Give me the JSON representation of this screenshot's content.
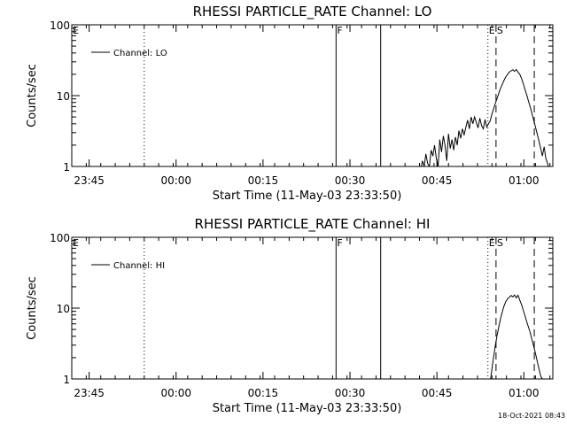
{
  "footer": {
    "timestamp": "18-Oct-2021 08:43"
  },
  "chart_data": [
    {
      "type": "line",
      "title": "RHESSI PARTICLE_RATE Channel: LO",
      "xlabel": "Start Time (11-May-03 23:33:50)",
      "ylabel": "Counts/sec",
      "yscale": "log",
      "ylim": [
        1,
        100
      ],
      "xlim_minutes": [
        -15.0,
        68.0
      ],
      "xticks": {
        "values": [
          -12,
          3,
          18,
          33,
          48,
          63
        ],
        "labels": [
          "23:45",
          "00:00",
          "00:15",
          "00:30",
          "00:45",
          "01:00"
        ]
      },
      "yticks": {
        "values": [
          1,
          10,
          100
        ],
        "labels": [
          "1",
          "10",
          "100"
        ]
      },
      "legend": {
        "entry": "Channel: LO",
        "placement": "top-left"
      },
      "markers": [
        {
          "label": "E",
          "x": -15.0,
          "style": "dotted"
        },
        {
          "label": "",
          "x": -2.5,
          "style": "dotted"
        },
        {
          "label": "F",
          "x": 30.6,
          "style": "solid"
        },
        {
          "label": "",
          "x": 38.3,
          "style": "solid"
        },
        {
          "label": "E",
          "x": 56.8,
          "style": "dotted"
        },
        {
          "label": "S",
          "x": 58.2,
          "style": "dashed"
        },
        {
          "label": "",
          "x": 64.8,
          "style": "dashed"
        },
        {
          "label": "",
          "x": 71.8,
          "style": "dotted"
        }
      ],
      "series": [
        {
          "x": [
            45.2,
            45.5,
            45.8,
            46.1,
            46.4,
            46.7,
            47.0,
            47.3,
            47.6,
            47.9,
            48.2,
            48.5,
            48.8,
            49.1,
            49.4,
            49.7,
            50.0,
            50.3,
            50.6,
            50.9,
            51.2,
            51.5,
            51.8,
            52.1,
            52.4,
            52.7,
            53.0,
            53.3,
            53.6,
            53.9,
            54.2,
            54.5,
            54.8,
            55.1,
            55.4,
            55.7,
            56.0,
            56.3,
            56.6,
            56.9,
            57.2,
            57.5,
            57.8,
            58.1,
            58.4,
            58.7,
            59.0,
            59.3,
            59.6,
            59.9,
            60.2,
            60.5,
            60.8,
            61.1,
            61.4,
            61.7,
            62.0,
            62.3,
            62.6,
            62.9,
            63.2,
            63.5,
            63.8,
            64.1,
            64.4,
            64.7,
            65.0,
            65.3,
            65.6,
            65.9,
            66.2,
            66.5,
            66.8,
            67.1,
            67.4
          ],
          "y": [
            0.9,
            1.2,
            1.0,
            1.5,
            1.1,
            1.0,
            1.7,
            1.4,
            2.0,
            1.3,
            1.0,
            2.4,
            1.6,
            2.7,
            2.0,
            1.2,
            2.9,
            1.8,
            2.4,
            1.7,
            2.6,
            2.0,
            3.2,
            2.5,
            3.4,
            2.8,
            3.6,
            4.5,
            3.4,
            5.0,
            4.0,
            5.0,
            4.2,
            3.5,
            4.8,
            3.8,
            3.4,
            4.6,
            3.6,
            4.0,
            4.4,
            5.5,
            6.6,
            7.8,
            9.2,
            11.0,
            12.8,
            14.6,
            16.5,
            18.5,
            20.0,
            21.5,
            22.4,
            23.2,
            22.0,
            23.4,
            21.5,
            20.0,
            17.5,
            14.8,
            12.2,
            10.2,
            8.4,
            6.9,
            5.6,
            4.5,
            3.6,
            2.9,
            2.3,
            1.8,
            1.4,
            1.9,
            1.3,
            1.1,
            0.9
          ]
        }
      ]
    },
    {
      "type": "line",
      "title": "RHESSI PARTICLE_RATE Channel: HI",
      "xlabel": "Start Time (11-May-03 23:33:50)",
      "ylabel": "Counts/sec",
      "yscale": "log",
      "ylim": [
        1,
        100
      ],
      "xlim_minutes": [
        -15.0,
        68.0
      ],
      "xticks": {
        "values": [
          -12,
          3,
          18,
          33,
          48,
          63
        ],
        "labels": [
          "23:45",
          "00:00",
          "00:15",
          "00:30",
          "00:45",
          "01:00"
        ]
      },
      "yticks": {
        "values": [
          1,
          10,
          100
        ],
        "labels": [
          "1",
          "10",
          "100"
        ]
      },
      "legend": {
        "entry": "Channel: HI",
        "placement": "top-left"
      },
      "markers": [
        {
          "label": "E",
          "x": -15.0,
          "style": "dotted"
        },
        {
          "label": "",
          "x": -2.5,
          "style": "dotted"
        },
        {
          "label": "F",
          "x": 30.6,
          "style": "solid"
        },
        {
          "label": "",
          "x": 38.3,
          "style": "solid"
        },
        {
          "label": "E",
          "x": 56.8,
          "style": "dotted"
        },
        {
          "label": "S",
          "x": 58.2,
          "style": "dashed"
        },
        {
          "label": "",
          "x": 64.8,
          "style": "dashed"
        },
        {
          "label": "",
          "x": 71.8,
          "style": "dotted"
        }
      ],
      "series": [
        {
          "x": [
            57.2,
            57.5,
            57.8,
            58.1,
            58.4,
            58.7,
            59.0,
            59.3,
            59.6,
            59.9,
            60.2,
            60.5,
            60.8,
            61.1,
            61.4,
            61.7,
            62.0,
            62.3,
            62.6,
            62.9,
            63.2,
            63.5,
            63.8,
            64.1,
            64.4,
            64.7,
            65.0,
            65.3,
            65.6,
            65.9,
            66.2,
            66.5
          ],
          "y": [
            0.9,
            1.4,
            2.1,
            3.0,
            4.2,
            5.6,
            7.2,
            9.0,
            10.8,
            12.4,
            13.6,
            14.2,
            15.1,
            14.4,
            15.3,
            14.0,
            15.2,
            13.0,
            11.2,
            9.4,
            7.8,
            6.4,
            5.4,
            4.5,
            3.6,
            2.9,
            2.3,
            1.8,
            1.4,
            1.1,
            1.0,
            0.9
          ]
        }
      ]
    }
  ]
}
